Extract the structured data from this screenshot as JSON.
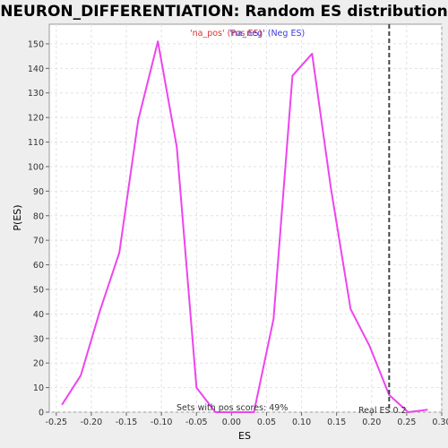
{
  "chart_data": {
    "type": "line",
    "title": "NEURON_DIFFERENTIATION: Random ES distribution",
    "xlabel": "ES",
    "ylabel": "P(ES)",
    "xlim": [
      -0.26,
      0.3
    ],
    "ylim": [
      0,
      158
    ],
    "x_ticks": [
      -0.25,
      -0.2,
      -0.15,
      -0.1,
      -0.05,
      0.0,
      0.05,
      0.1,
      0.15,
      0.2,
      0.25,
      0.3
    ],
    "x_tick_labels": [
      "-0.25",
      "-0.20",
      "-0.15",
      "-0.10",
      "-0.05",
      "0.00",
      "0.05",
      "0.10",
      "0.15",
      "0.20",
      "0.25",
      "0.30"
    ],
    "y_ticks": [
      0,
      10,
      20,
      30,
      40,
      50,
      60,
      70,
      80,
      90,
      100,
      110,
      120,
      130,
      140,
      150
    ],
    "y_tick_labels": [
      "0",
      "10",
      "20",
      "30",
      "40",
      "50",
      "60",
      "70",
      "80",
      "90",
      "100",
      "110",
      "120",
      "130",
      "140",
      "150"
    ],
    "grid": true,
    "series": [
      {
        "color": "#ee44ee",
        "x": [
          -0.242,
          -0.215,
          -0.188,
          -0.16,
          -0.133,
          -0.105,
          -0.078,
          -0.05,
          -0.023,
          0.005,
          0.032,
          0.06,
          0.087,
          0.115,
          0.142,
          0.17,
          0.197,
          0.225,
          0.252,
          0.28
        ],
        "y": [
          3,
          15,
          41,
          65,
          119,
          151,
          108,
          10,
          0,
          0,
          0,
          38,
          137,
          146,
          91,
          42,
          27,
          7,
          0,
          1
        ]
      }
    ],
    "legend": {
      "placement": "top-center",
      "pos_label": "'na_pos' (Pos ES)",
      "neg_label": "'na_neg' (Neg ES)"
    },
    "real_es": {
      "value": 0.225,
      "label": "Real ES 0.2"
    },
    "annotation": "Sets with pos scores: 49%"
  }
}
